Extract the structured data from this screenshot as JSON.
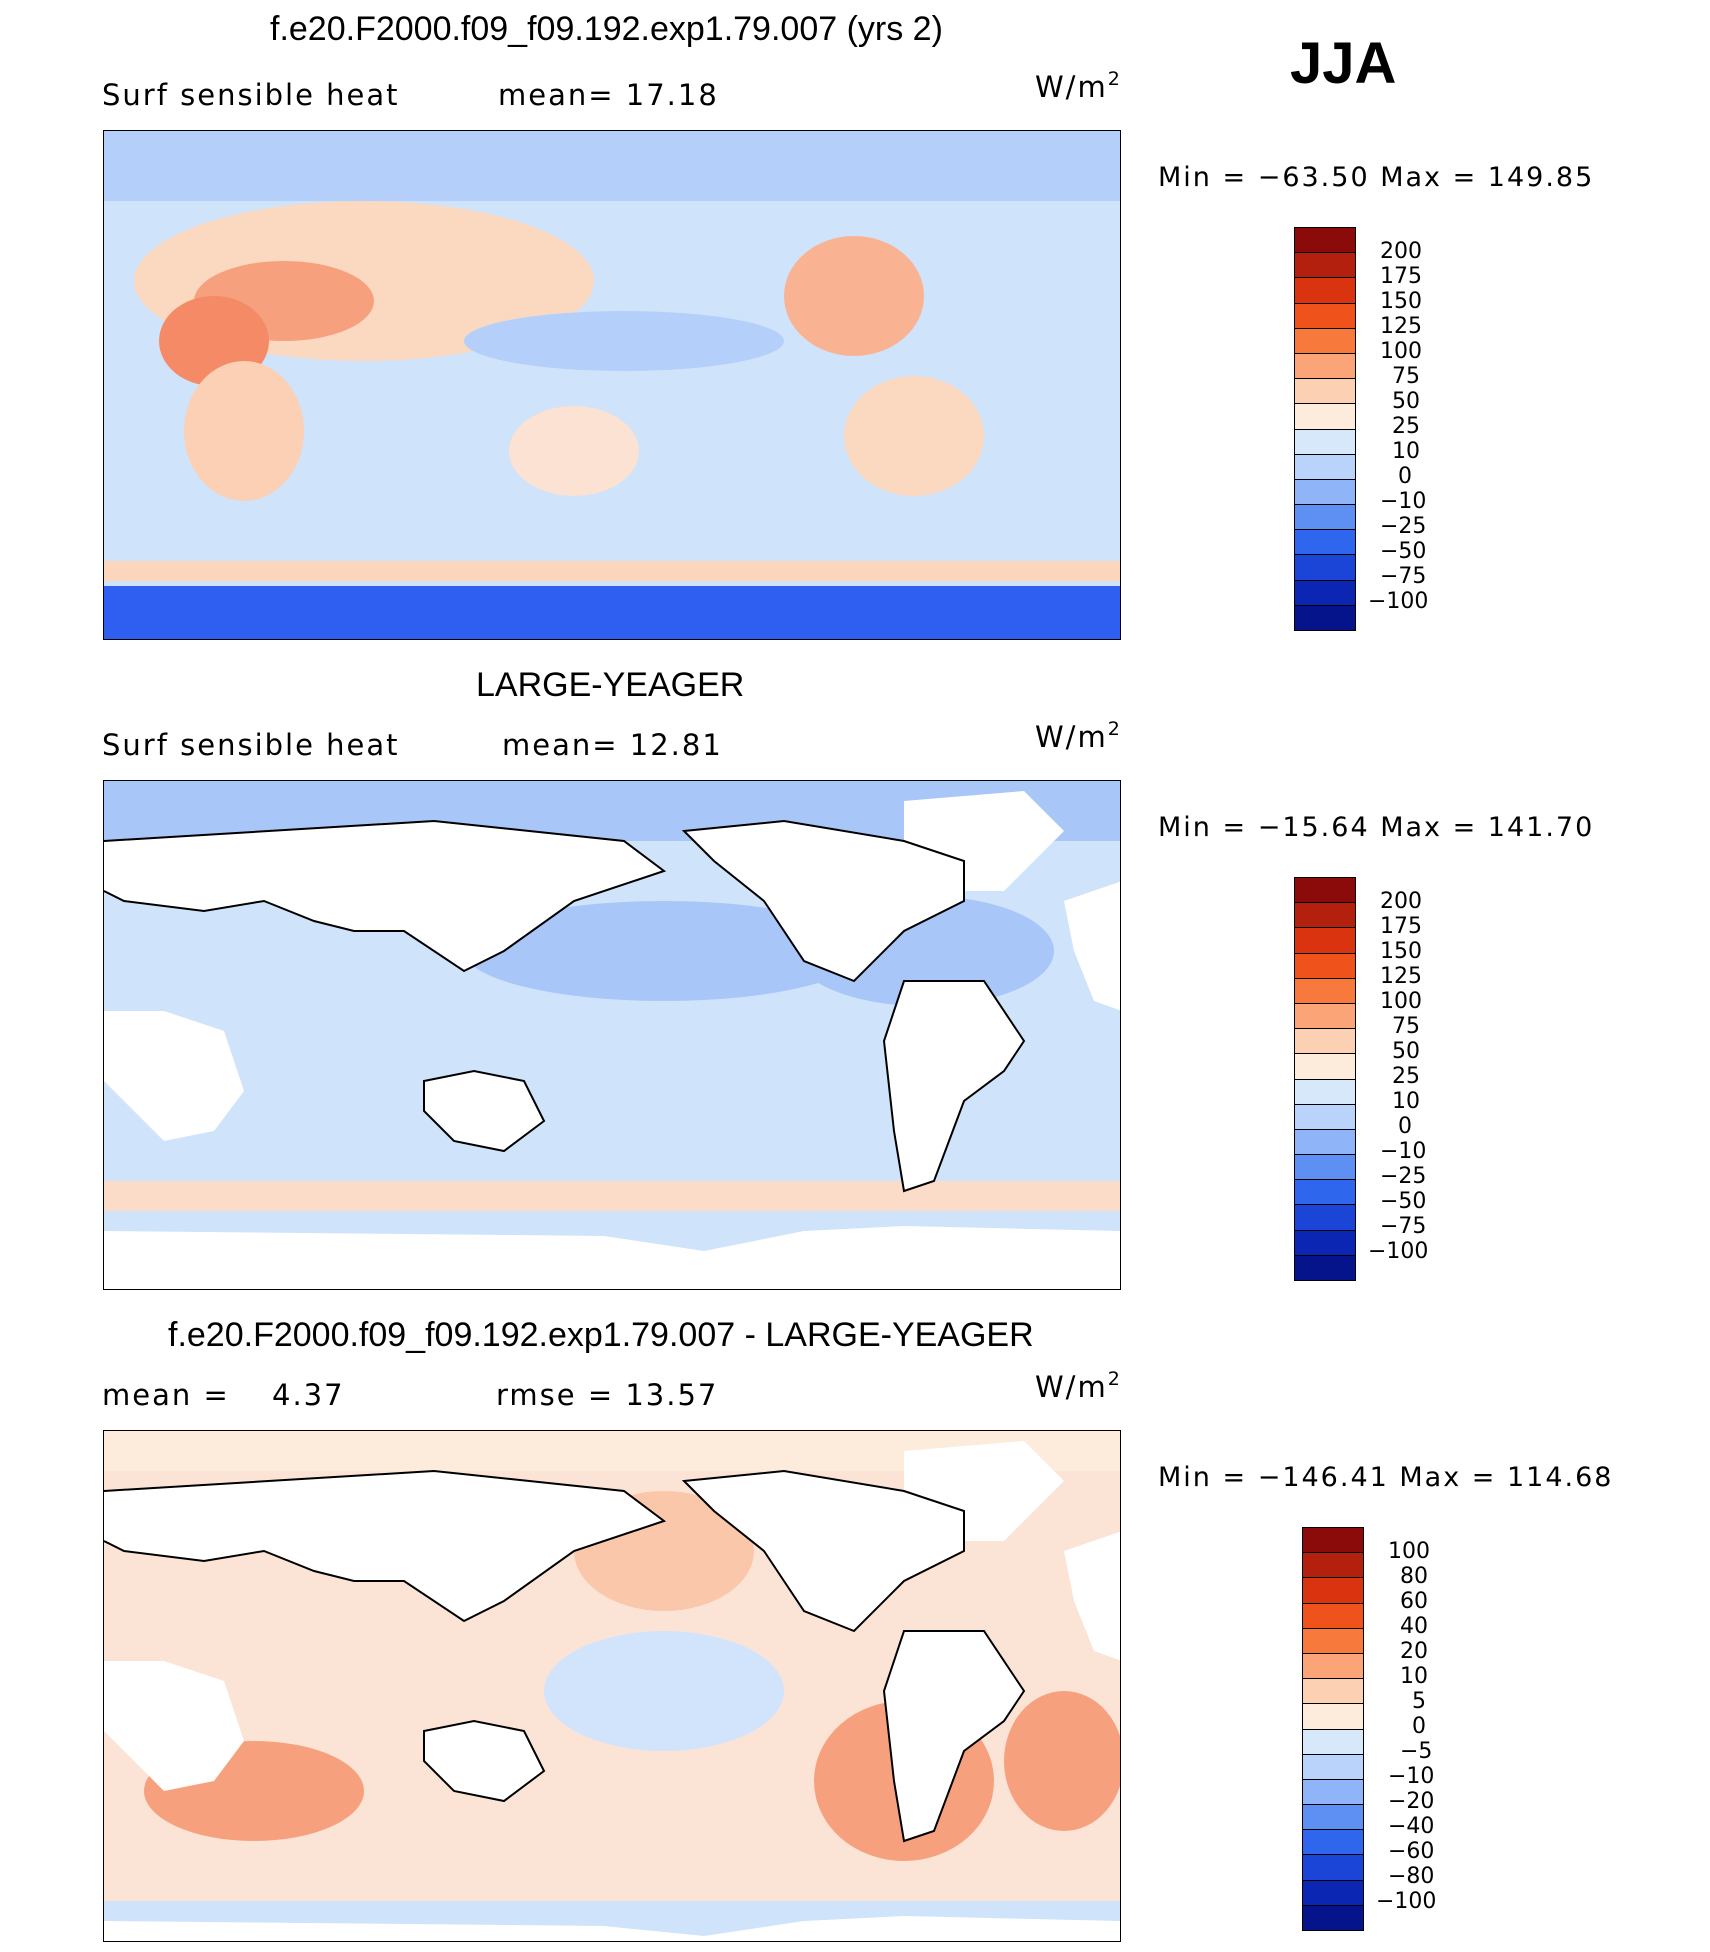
{
  "season": "JJA",
  "unit": {
    "base": "W/m",
    "exp": "2"
  },
  "panels": [
    {
      "title": "f.e20.F2000.f09_f09.192.exp1.79.007 (yrs 2)",
      "field_label": "Surf  sensible  heat",
      "stat1": "mean=   17.18",
      "stat2": "",
      "minmax": "Min  =  −63.50  Max  =  149.85",
      "colorbar_labels": [
        "200",
        "175",
        "150",
        "125",
        "100",
        "75",
        "50",
        "25",
        "10",
        "0",
        "−10",
        "−25",
        "−50",
        "−75",
        "−100"
      ],
      "colorbar_colors": [
        "#8b0a0a",
        "#b3200e",
        "#d9340f",
        "#f0521c",
        "#f77a3c",
        "#fba477",
        "#fcd0b3",
        "#fdebdc",
        "#d8e8fb",
        "#b9d3fb",
        "#8fb5f8",
        "#5e8ff2",
        "#2f66ee",
        "#1a45d6",
        "#0b26b3",
        "#06148b"
      ]
    },
    {
      "title": "LARGE-YEAGER",
      "field_label": "Surf  sensible  heat",
      "stat1": "mean=   12.81",
      "stat2": "",
      "minmax": "Min  =  −15.64  Max  =  141.70",
      "colorbar_labels": [
        "200",
        "175",
        "150",
        "125",
        "100",
        "75",
        "50",
        "25",
        "10",
        "0",
        "−10",
        "−25",
        "−50",
        "−75",
        "−100"
      ],
      "colorbar_colors": [
        "#8b0a0a",
        "#b3200e",
        "#d9340f",
        "#f0521c",
        "#f77a3c",
        "#fba477",
        "#fcd0b3",
        "#fdebdc",
        "#d8e8fb",
        "#b9d3fb",
        "#8fb5f8",
        "#5e8ff2",
        "#2f66ee",
        "#1a45d6",
        "#0b26b3",
        "#06148b"
      ]
    },
    {
      "title": "f.e20.F2000.f09_f09.192.exp1.79.007 - LARGE-YEAGER",
      "field_label": "mean  =",
      "stat1": "4.37",
      "stat2": "rmse  =    13.57",
      "minmax": "Min  =  −146.41  Max  =  114.68",
      "colorbar_labels": [
        "100",
        "80",
        "60",
        "40",
        "20",
        "10",
        "5",
        "0",
        "−5",
        "−10",
        "−20",
        "−40",
        "−60",
        "−80",
        "−100"
      ],
      "colorbar_colors": [
        "#8b0a0a",
        "#b3200e",
        "#d9340f",
        "#f0521c",
        "#f77a3c",
        "#fba477",
        "#fcd0b3",
        "#fdebdc",
        "#d8e8fb",
        "#b9d3fb",
        "#8fb5f8",
        "#5e8ff2",
        "#2f66ee",
        "#1a45d6",
        "#0b26b3",
        "#06148b"
      ]
    }
  ],
  "colors": {
    "land_mask": "#ffffff",
    "coast": "#000000"
  }
}
